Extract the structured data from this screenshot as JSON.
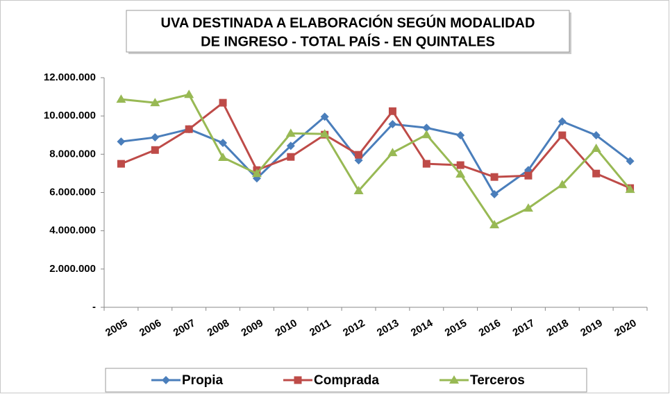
{
  "chart_data": {
    "type": "line",
    "title": [
      "UVA DESTINADA A ELABORACIÓN SEGÚN MODALIDAD",
      "DE INGRESO - TOTAL PAÍS - EN QUINTALES"
    ],
    "categories": [
      "2005",
      "2006",
      "2007",
      "2008",
      "2009",
      "2010",
      "2011",
      "2012",
      "2013",
      "2014",
      "2015",
      "2016",
      "2017",
      "2018",
      "2019",
      "2020"
    ],
    "series": [
      {
        "name": "Propia",
        "color": "#4a7ebb",
        "marker": "diamond",
        "values": [
          8660000,
          8880000,
          9310000,
          8590000,
          6740000,
          8440000,
          9960000,
          7680000,
          9570000,
          9380000,
          8990000,
          5910000,
          7170000,
          9710000,
          8990000,
          7640000
        ]
      },
      {
        "name": "Comprada",
        "color": "#be4b48",
        "marker": "square",
        "values": [
          7500000,
          8220000,
          9310000,
          10690000,
          7170000,
          7860000,
          9020000,
          7970000,
          10250000,
          7500000,
          7430000,
          6810000,
          6880000,
          8990000,
          6990000,
          6230000
        ]
      },
      {
        "name": "Terceros",
        "color": "#98b954",
        "marker": "triangle",
        "values": [
          10870000,
          10690000,
          11120000,
          7830000,
          6990000,
          9090000,
          9060000,
          6090000,
          8080000,
          9020000,
          6960000,
          4310000,
          5180000,
          6410000,
          8300000,
          6160000
        ]
      }
    ],
    "ylim": [
      0,
      12000000
    ],
    "yticks": [
      {
        "value": 0,
        "label": "-"
      },
      {
        "value": 2000000,
        "label": "2.000.000"
      },
      {
        "value": 4000000,
        "label": "4.000.000"
      },
      {
        "value": 6000000,
        "label": "6.000.000"
      },
      {
        "value": 8000000,
        "label": "8.000.000"
      },
      {
        "value": 10000000,
        "label": "10.000.000"
      },
      {
        "value": 12000000,
        "label": "12.000.000"
      }
    ],
    "grid": false,
    "legend": "bottom"
  }
}
